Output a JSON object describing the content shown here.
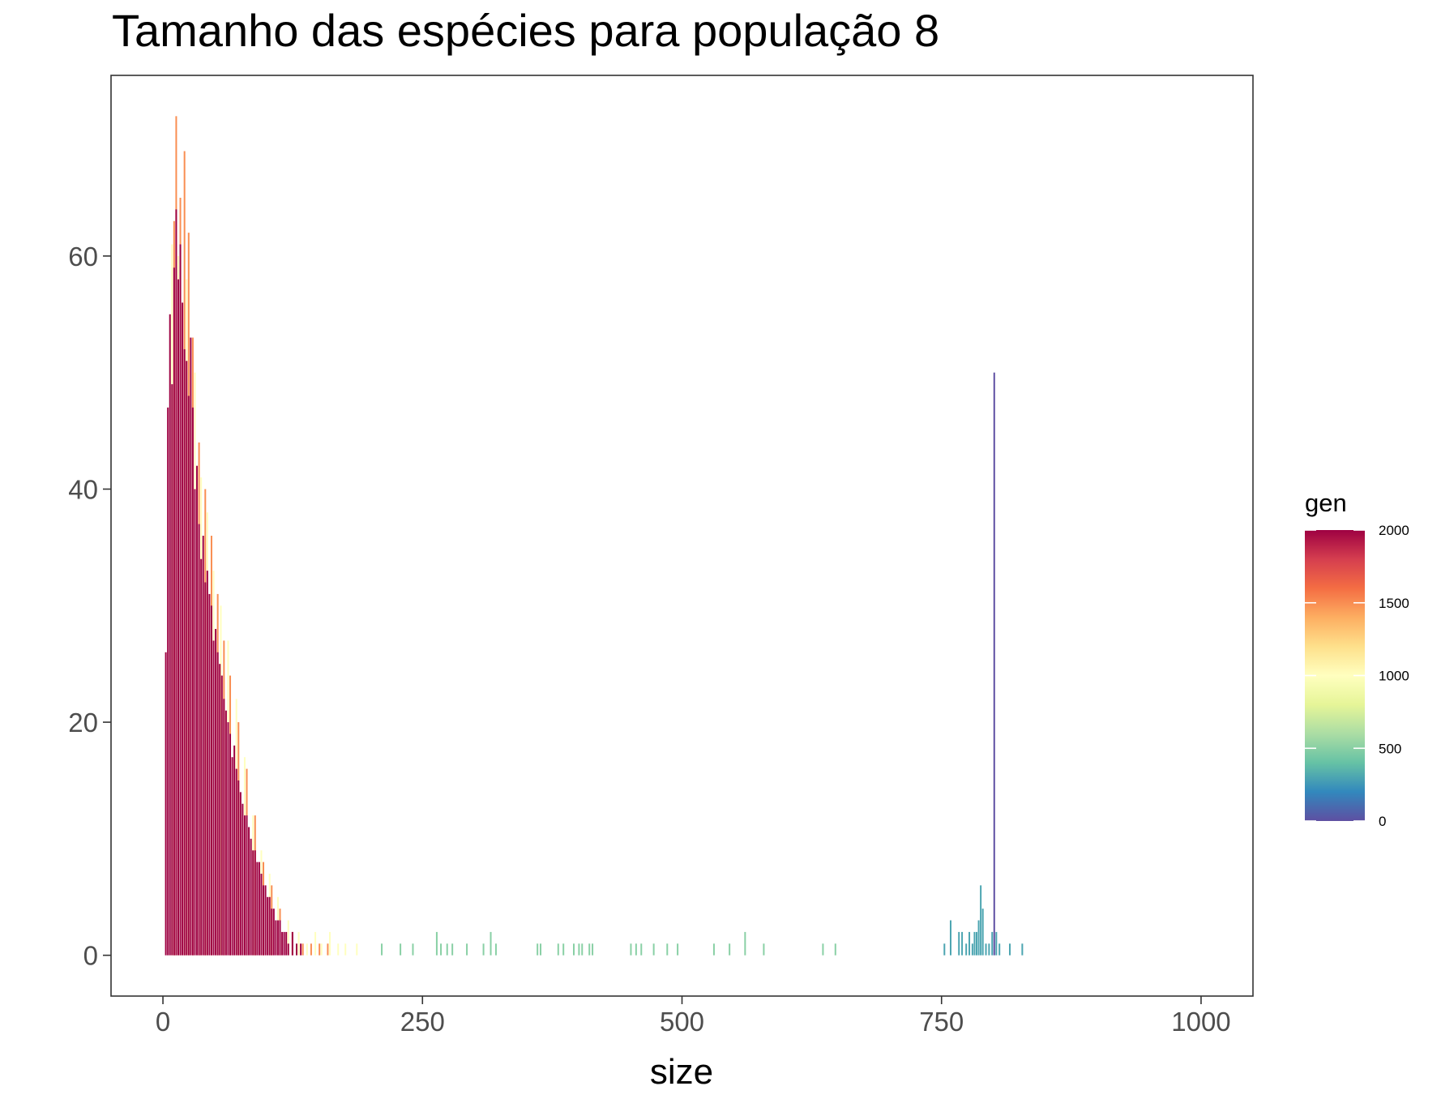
{
  "chart_data": {
    "type": "bar",
    "title": "Tamanho das espécies para população 8",
    "xlabel": "size",
    "ylabel": "",
    "xlim": [
      -50,
      1050
    ],
    "ylim": [
      -3.5,
      75.5
    ],
    "x_ticks": [
      0,
      250,
      500,
      750,
      1000
    ],
    "x_tick_labels": [
      "0",
      "250",
      "500",
      "750",
      "1000"
    ],
    "y_ticks": [
      0,
      20,
      40,
      60
    ],
    "y_tick_labels": [
      "0",
      "20",
      "40",
      60
    ],
    "grid": false,
    "legend": {
      "title": "gen",
      "position": "right",
      "range": [
        0,
        2000
      ],
      "ticks": [
        0,
        500,
        1000,
        1500,
        2000
      ],
      "tick_labels": [
        "0",
        "500",
        "1000",
        "1500",
        "2000"
      ],
      "palette": [
        "#5E4FA2",
        "#3288BD",
        "#66C2A5",
        "#ABDDA4",
        "#E6F598",
        "#FFFFBF",
        "#FEE08B",
        "#FDAE61",
        "#F46D43",
        "#D53E4F",
        "#9E0142"
      ]
    },
    "series": [
      {
        "name": "gen 0",
        "gen": 0,
        "points": [
          [
            800,
            50
          ]
        ]
      },
      {
        "name": "gen 300",
        "gen": 300,
        "points": [
          [
            752,
            1
          ],
          [
            758,
            3
          ],
          [
            766,
            2
          ],
          [
            769,
            2
          ],
          [
            773,
            1
          ],
          [
            776,
            2
          ],
          [
            779,
            1
          ],
          [
            781,
            2
          ],
          [
            783,
            2
          ],
          [
            785,
            3
          ],
          [
            787,
            6
          ],
          [
            789,
            4
          ],
          [
            792,
            1
          ],
          [
            795,
            1
          ],
          [
            798,
            2
          ],
          [
            802,
            2
          ],
          [
            805,
            1
          ],
          [
            815,
            1
          ],
          [
            827,
            1
          ]
        ]
      },
      {
        "name": "gen 500",
        "gen": 500,
        "points": [
          [
            210,
            1
          ],
          [
            228,
            1
          ],
          [
            240,
            1
          ],
          [
            263,
            2
          ],
          [
            267,
            1
          ],
          [
            273,
            1
          ],
          [
            278,
            1
          ],
          [
            292,
            1
          ],
          [
            308,
            1
          ],
          [
            315,
            2
          ],
          [
            320,
            1
          ],
          [
            360,
            1
          ],
          [
            363,
            1
          ],
          [
            380,
            1
          ],
          [
            385,
            1
          ],
          [
            395,
            1
          ],
          [
            400,
            1
          ],
          [
            403,
            1
          ],
          [
            410,
            1
          ],
          [
            413,
            1
          ],
          [
            450,
            1
          ],
          [
            455,
            1
          ],
          [
            460,
            1
          ],
          [
            472,
            1
          ],
          [
            485,
            1
          ],
          [
            495,
            1
          ],
          [
            530,
            1
          ],
          [
            545,
            1
          ],
          [
            560,
            2
          ],
          [
            578,
            1
          ],
          [
            635,
            1
          ],
          [
            647,
            1
          ]
        ]
      },
      {
        "name": "gen 1000",
        "gen": 1000,
        "points": [
          [
            8,
            61
          ],
          [
            14,
            60
          ],
          [
            22,
            58
          ],
          [
            30,
            50
          ],
          [
            36,
            41
          ],
          [
            42,
            38
          ],
          [
            48,
            33
          ],
          [
            55,
            30
          ],
          [
            62,
            27
          ],
          [
            70,
            22
          ],
          [
            78,
            17
          ],
          [
            86,
            12
          ],
          [
            94,
            9
          ],
          [
            102,
            7
          ],
          [
            110,
            5
          ],
          [
            120,
            3
          ],
          [
            130,
            2
          ],
          [
            138,
            1
          ],
          [
            146,
            2
          ],
          [
            152,
            1
          ],
          [
            160,
            2
          ],
          [
            168,
            1
          ],
          [
            175,
            1
          ],
          [
            186,
            1
          ]
        ]
      },
      {
        "name": "gen 1500",
        "gen": 1500,
        "points": [
          [
            10,
            63
          ],
          [
            12,
            72
          ],
          [
            16,
            65
          ],
          [
            20,
            69
          ],
          [
            24,
            62
          ],
          [
            28,
            53
          ],
          [
            34,
            44
          ],
          [
            40,
            40
          ],
          [
            46,
            36
          ],
          [
            52,
            31
          ],
          [
            58,
            27
          ],
          [
            64,
            24
          ],
          [
            72,
            20
          ],
          [
            80,
            16
          ],
          [
            88,
            12
          ],
          [
            96,
            8
          ],
          [
            104,
            6
          ],
          [
            112,
            4
          ],
          [
            124,
            2
          ],
          [
            134,
            1
          ],
          [
            142,
            1
          ],
          [
            150,
            1
          ],
          [
            158,
            1
          ]
        ]
      },
      {
        "name": "gen 2000",
        "gen": 2000,
        "points": [
          [
            2,
            26
          ],
          [
            4,
            47
          ],
          [
            6,
            55
          ],
          [
            8,
            49
          ],
          [
            10,
            59
          ],
          [
            12,
            64
          ],
          [
            14,
            58
          ],
          [
            16,
            61
          ],
          [
            18,
            56
          ],
          [
            20,
            52
          ],
          [
            22,
            51
          ],
          [
            24,
            48
          ],
          [
            26,
            53
          ],
          [
            28,
            47
          ],
          [
            30,
            40
          ],
          [
            32,
            42
          ],
          [
            34,
            37
          ],
          [
            36,
            34
          ],
          [
            38,
            36
          ],
          [
            40,
            32
          ],
          [
            42,
            33
          ],
          [
            44,
            31
          ],
          [
            46,
            30
          ],
          [
            48,
            27
          ],
          [
            50,
            28
          ],
          [
            52,
            26
          ],
          [
            54,
            25
          ],
          [
            56,
            24
          ],
          [
            58,
            22
          ],
          [
            60,
            21
          ],
          [
            62,
            20
          ],
          [
            64,
            19
          ],
          [
            66,
            17
          ],
          [
            68,
            18
          ],
          [
            70,
            16
          ],
          [
            72,
            15
          ],
          [
            74,
            14
          ],
          [
            76,
            13
          ],
          [
            78,
            12
          ],
          [
            80,
            12
          ],
          [
            82,
            11
          ],
          [
            84,
            10
          ],
          [
            86,
            9
          ],
          [
            88,
            9
          ],
          [
            90,
            8
          ],
          [
            92,
            8
          ],
          [
            94,
            7
          ],
          [
            96,
            6
          ],
          [
            98,
            6
          ],
          [
            100,
            5
          ],
          [
            102,
            5
          ],
          [
            104,
            4
          ],
          [
            106,
            4
          ],
          [
            108,
            3
          ],
          [
            110,
            3
          ],
          [
            112,
            3
          ],
          [
            114,
            2
          ],
          [
            116,
            2
          ],
          [
            118,
            2
          ],
          [
            120,
            1
          ],
          [
            124,
            2
          ],
          [
            128,
            1
          ],
          [
            132,
            1
          ]
        ]
      }
    ]
  }
}
